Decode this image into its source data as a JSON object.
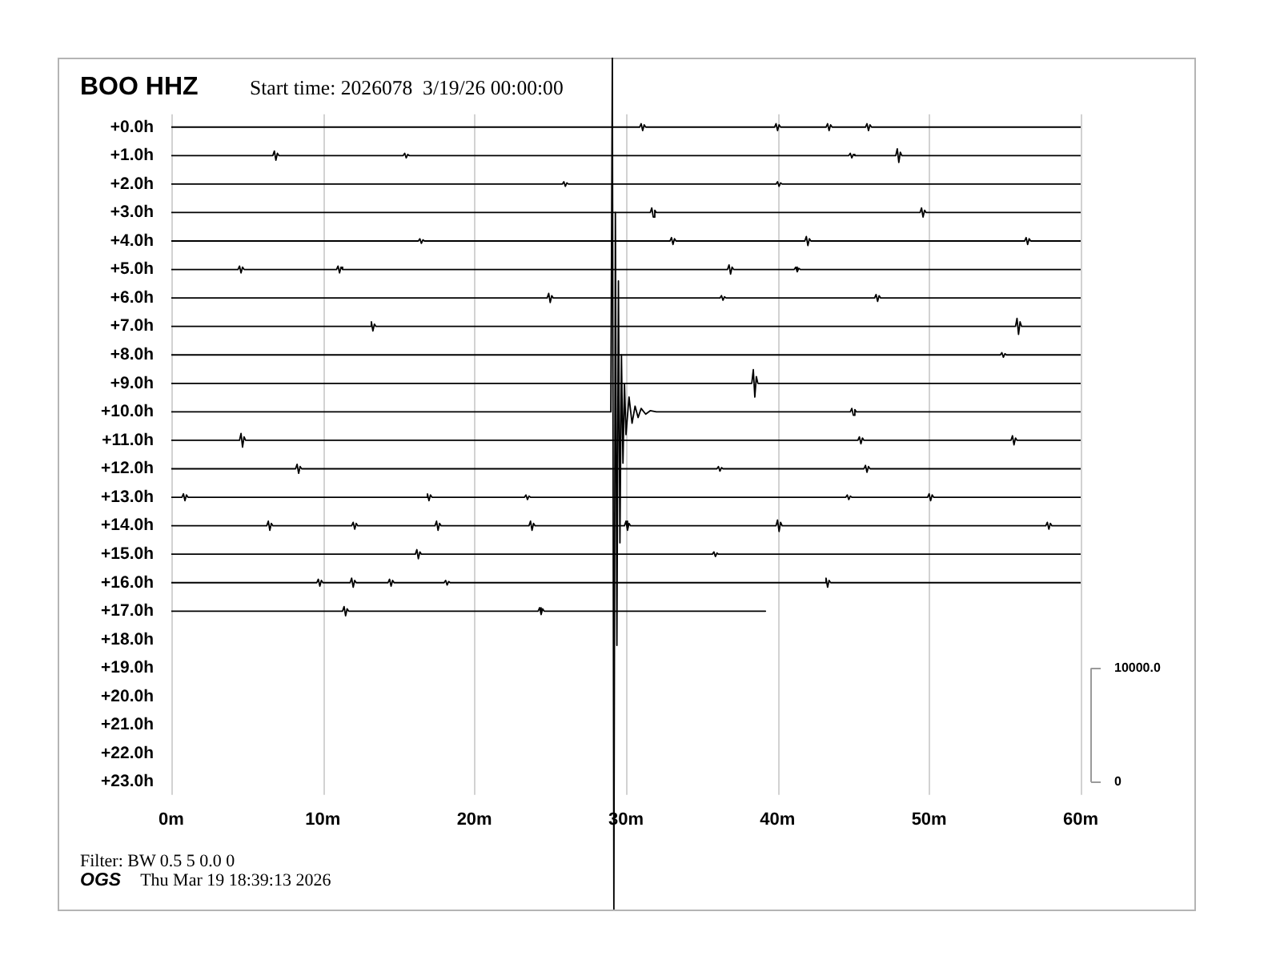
{
  "chart_data": {
    "type": "line",
    "title": "BOO HHZ",
    "subtitle": "Start time: 2026078  3/19/26 00:00:00",
    "annotations": [
      "Filter: BW 0.5 5 0.0 0",
      "OGS",
      "Thu Mar 19 18:39:13 2026"
    ],
    "xlim": [
      0,
      60
    ],
    "xticks": [
      {
        "value": 0,
        "label": "0m"
      },
      {
        "value": 10,
        "label": "10m"
      },
      {
        "value": 20,
        "label": "20m"
      },
      {
        "value": 30,
        "label": "30m"
      },
      {
        "value": 40,
        "label": "40m"
      },
      {
        "value": 50,
        "label": "50m"
      },
      {
        "value": 60,
        "label": "60m"
      }
    ],
    "ylim": [
      27.48,
      -2.44
    ],
    "yticks": [
      {
        "value": 0,
        "label": "+0.0h"
      },
      {
        "value": 1,
        "label": "+1.0h"
      },
      {
        "value": 2,
        "label": "+2.0h"
      },
      {
        "value": 3,
        "label": "+3.0h"
      },
      {
        "value": 4,
        "label": "+4.0h"
      },
      {
        "value": 5,
        "label": "+5.0h"
      },
      {
        "value": 6,
        "label": "+6.0h"
      },
      {
        "value": 7,
        "label": "+7.0h"
      },
      {
        "value": 8,
        "label": "+8.0h"
      },
      {
        "value": 9,
        "label": "+9.0h"
      },
      {
        "value": 10,
        "label": "+10.0h"
      },
      {
        "value": 11,
        "label": "+11.0h"
      },
      {
        "value": 12,
        "label": "+12.0h"
      },
      {
        "value": 13,
        "label": "+13.0h"
      },
      {
        "value": 14,
        "label": "+14.0h"
      },
      {
        "value": 15,
        "label": "+15.0h"
      },
      {
        "value": 16,
        "label": "+16.0h"
      },
      {
        "value": 17,
        "label": "+17.0h"
      },
      {
        "value": 18,
        "label": "+18.0h"
      },
      {
        "value": 19,
        "label": "+19.0h"
      },
      {
        "value": 20,
        "label": "+20.0h"
      },
      {
        "value": 21,
        "label": "+21.0h"
      },
      {
        "value": 22,
        "label": "+22.0h"
      },
      {
        "value": 23,
        "label": "+23.0h"
      }
    ],
    "y2lim": [
      -11200,
      63600
    ],
    "y2ticks": [
      0,
      {
        "value": 10000,
        "label": "10000.0"
      }
    ],
    "grid": "x",
    "marker": "none",
    "line_style": "solid",
    "series": [
      {
        "color": "#000000",
        "axis": "y2",
        "x": [
          0,
          30.9,
          31,
          31.1,
          31.2,
          31.3,
          39.8,
          39.9,
          40,
          40.1,
          40.2,
          43.2,
          43.3,
          43.4,
          43.5,
          43.6,
          45.8,
          45.9,
          46,
          46.1,
          46.2,
          60
        ],
        "values": [
          57500,
          57500,
          57800,
          57200,
          57700,
          57500,
          57500,
          57800,
          57200,
          57700,
          57500,
          57500,
          57800,
          57200,
          57700,
          57500,
          57500,
          57800,
          57200,
          57700,
          57500,
          57500
        ]
      },
      {
        "color": "#000000",
        "axis": "y2",
        "x": [
          0,
          6.7,
          6.8,
          6.9,
          7,
          7.1,
          15.3,
          15.4,
          15.5,
          15.6,
          15.7,
          44.7,
          44.8,
          44.9,
          45,
          45.1,
          47.8,
          47.9,
          48,
          48.1,
          48.2,
          60
        ],
        "values": [
          55000,
          55000,
          55400,
          54600,
          55200,
          55000,
          55000,
          55200,
          54800,
          55100,
          55000,
          55000,
          55200,
          54800,
          55100,
          55000,
          55000,
          55600,
          54400,
          55300,
          55000,
          55000
        ]
      },
      {
        "color": "#000000",
        "axis": "y2",
        "x": [
          0,
          25.8,
          25.9,
          26,
          26.1,
          26.2,
          39.9,
          40,
          40.1,
          40.2,
          40.3,
          60
        ],
        "values": [
          52500,
          52500,
          52700,
          52300,
          52600,
          52500,
          52500,
          52700,
          52300,
          52600,
          52500,
          52500
        ]
      },
      {
        "color": "#000000",
        "axis": "y2",
        "x": [
          0,
          31.6,
          31.7,
          31.8,
          31.9,
          32,
          49.4,
          49.5,
          49.6,
          49.7,
          49.8,
          60
        ],
        "values": [
          50000,
          50000,
          50400,
          49600,
          50200,
          50000,
          50000,
          50400,
          49600,
          50200,
          50000,
          50000
        ]
      },
      {
        "color": "#000000",
        "axis": "y2",
        "x": [
          0,
          16.3,
          16.4,
          16.5,
          16.6,
          16.7,
          32.9,
          33,
          33.1,
          33.2,
          33.3,
          41.8,
          41.9,
          42,
          42.1,
          42.2,
          56.3,
          56.4,
          56.5,
          56.6,
          56.7,
          60
        ],
        "values": [
          47500,
          47500,
          47700,
          47300,
          47600,
          47500,
          47500,
          47800,
          47200,
          47700,
          47500,
          47500,
          47900,
          47100,
          47700,
          47500,
          47500,
          47800,
          47200,
          47700,
          47500,
          47500
        ]
      },
      {
        "color": "#000000",
        "axis": "y2",
        "x": [
          0,
          4.4,
          4.5,
          4.6,
          4.7,
          4.8,
          10.9,
          11,
          11.1,
          11.2,
          11.3,
          36.7,
          36.8,
          36.9,
          37,
          37.1,
          41.1,
          41.2,
          41.3,
          41.4,
          41.5,
          60
        ],
        "values": [
          45000,
          45000,
          45300,
          44700,
          45200,
          45000,
          45000,
          45300,
          44700,
          45200,
          45000,
          45000,
          45400,
          44600,
          45200,
          45000,
          45000,
          45200,
          44800,
          45100,
          45000,
          45000
        ]
      },
      {
        "color": "#000000",
        "axis": "y2",
        "x": [
          0,
          24.8,
          24.9,
          25,
          25.1,
          25.2,
          36.2,
          36.3,
          36.4,
          36.5,
          36.6,
          46.4,
          46.5,
          46.6,
          46.7,
          46.8,
          60
        ],
        "values": [
          42500,
          42500,
          42900,
          42100,
          42700,
          42500,
          42500,
          42700,
          42300,
          42600,
          42500,
          42500,
          42800,
          42200,
          42700,
          42500,
          42500
        ]
      },
      {
        "color": "#000000",
        "axis": "y2",
        "x": [
          0,
          13.1,
          13.2,
          13.3,
          13.4,
          13.5,
          55.7,
          55.8,
          55.9,
          56,
          56.1,
          60
        ],
        "values": [
          40000,
          40000,
          40400,
          39600,
          40200,
          40000,
          40000,
          40700,
          39300,
          40400,
          40000,
          40000
        ]
      },
      {
        "color": "#000000",
        "axis": "y2",
        "x": [
          0,
          54.7,
          54.8,
          54.9,
          55,
          55.1,
          60
        ],
        "values": [
          37500,
          37500,
          37700,
          37300,
          37600,
          37500,
          37500
        ]
      },
      {
        "color": "#000000",
        "axis": "y2",
        "x": [
          0,
          38.3,
          38.4,
          38.5,
          38.6,
          38.7,
          60
        ],
        "values": [
          35000,
          35000,
          36200,
          33800,
          35600,
          35000,
          35000
        ]
      },
      {
        "color": "#000000",
        "axis": "y2",
        "x": [
          0,
          29,
          29.1,
          29.2,
          29.3,
          29.4,
          29.5,
          29.6,
          29.7,
          29.8,
          29.9,
          30,
          30.2,
          30.4,
          30.6,
          30.8,
          31,
          31.3,
          31.6,
          32,
          44.8,
          44.9,
          45,
          45.1,
          45.2,
          60
        ],
        "values": [
          32500,
          32500,
          63600,
          -11200,
          50000,
          12000,
          44000,
          21000,
          37500,
          28000,
          35000,
          30500,
          33800,
          31500,
          33000,
          32000,
          32800,
          32300,
          32600,
          32500,
          32500,
          32800,
          32200,
          32700,
          32500,
          32500
        ]
      },
      {
        "color": "#000000",
        "axis": "y2",
        "x": [
          0,
          4.5,
          4.6,
          4.7,
          4.8,
          4.9,
          45.3,
          45.4,
          45.5,
          45.6,
          45.7,
          55.4,
          55.5,
          55.6,
          55.7,
          55.8,
          60
        ],
        "values": [
          30000,
          30000,
          30600,
          29400,
          30300,
          30000,
          30000,
          30300,
          29700,
          30200,
          30000,
          30000,
          30400,
          29600,
          30200,
          30000,
          30000
        ]
      },
      {
        "color": "#000000",
        "axis": "y2",
        "x": [
          0,
          8.2,
          8.3,
          8.4,
          8.5,
          8.6,
          36,
          36.1,
          36.2,
          36.3,
          36.4,
          45.7,
          45.8,
          45.9,
          46,
          46.1,
          60
        ],
        "values": [
          27500,
          27500,
          27900,
          27100,
          27700,
          27500,
          27500,
          27700,
          27300,
          27600,
          27500,
          27500,
          27800,
          27200,
          27700,
          27500,
          27500
        ]
      },
      {
        "color": "#000000",
        "axis": "y2",
        "x": [
          0,
          0.7,
          0.8,
          0.9,
          1,
          1.1,
          16.8,
          16.9,
          17,
          17.1,
          17.2,
          23.3,
          23.4,
          23.5,
          23.6,
          23.7,
          44.5,
          44.6,
          44.7,
          44.8,
          44.9,
          49.9,
          50,
          50.1,
          50.2,
          50.3,
          60
        ],
        "values": [
          25000,
          25000,
          25300,
          24700,
          25200,
          25000,
          25000,
          25300,
          24700,
          25200,
          25000,
          25000,
          25200,
          24800,
          25100,
          25000,
          25000,
          25200,
          24800,
          25100,
          25000,
          25000,
          25300,
          24700,
          25200,
          25000,
          25000
        ]
      },
      {
        "color": "#000000",
        "axis": "y2",
        "x": [
          0,
          6.3,
          6.4,
          6.5,
          6.6,
          6.7,
          11.9,
          12,
          12.1,
          12.2,
          12.3,
          17.4,
          17.5,
          17.6,
          17.7,
          17.8,
          23.6,
          23.7,
          23.8,
          23.9,
          24,
          29.9,
          30,
          30.1,
          30.2,
          30.3,
          39.9,
          40,
          40.1,
          40.2,
          40.3,
          57.7,
          57.8,
          57.9,
          58,
          58.1,
          60
        ],
        "values": [
          22500,
          22500,
          22900,
          22100,
          22700,
          22500,
          22500,
          22800,
          22200,
          22700,
          22500,
          22500,
          22900,
          22100,
          22700,
          22500,
          22500,
          22900,
          22100,
          22700,
          22500,
          22500,
          22900,
          22100,
          22700,
          22500,
          22500,
          23000,
          22000,
          22800,
          22500,
          22500,
          22800,
          22200,
          22700,
          22500,
          22500
        ]
      },
      {
        "color": "#000000",
        "axis": "y2",
        "x": [
          0,
          16.1,
          16.2,
          16.3,
          16.4,
          16.5,
          35.7,
          35.8,
          35.9,
          36,
          36.1,
          60
        ],
        "values": [
          20000,
          20000,
          20400,
          19600,
          20200,
          20000,
          20000,
          20200,
          19800,
          20100,
          20000,
          20000
        ]
      },
      {
        "color": "#000000",
        "axis": "y2",
        "x": [
          0,
          9.6,
          9.7,
          9.8,
          9.9,
          10,
          11.8,
          11.9,
          12,
          12.1,
          12.2,
          14.3,
          14.4,
          14.5,
          14.6,
          14.7,
          18,
          18.1,
          18.2,
          18.3,
          18.4,
          43.1,
          43.2,
          43.3,
          43.4,
          43.5,
          60
        ],
        "values": [
          17500,
          17500,
          17800,
          17200,
          17700,
          17500,
          17500,
          17900,
          17100,
          17700,
          17500,
          17500,
          17800,
          17200,
          17700,
          17500,
          17500,
          17700,
          17300,
          17600,
          17500,
          17500,
          17900,
          17100,
          17700,
          17500,
          17500
        ]
      },
      {
        "color": "#000000",
        "axis": "y2",
        "x": [
          0,
          11.3,
          11.4,
          11.5,
          11.6,
          11.7,
          24.2,
          24.3,
          24.4,
          24.5,
          24.6,
          39.2
        ],
        "values": [
          15000,
          15000,
          15400,
          14600,
          15200,
          15000,
          15000,
          15300,
          14700,
          15200,
          15000,
          15000
        ]
      }
    ]
  }
}
